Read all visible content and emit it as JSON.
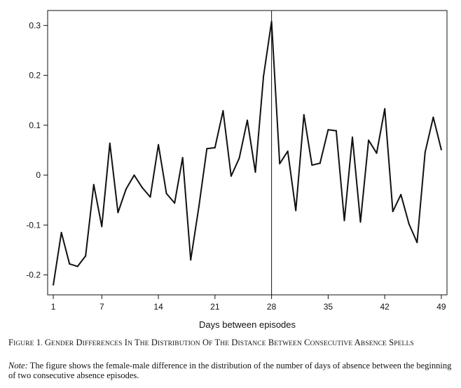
{
  "chart_data": {
    "type": "line",
    "title": "",
    "xlabel": "Days between episodes",
    "ylabel": "",
    "xlim": [
      0.3,
      49.7
    ],
    "ylim": [
      -0.24,
      0.33
    ],
    "x_ticks": [
      1,
      7,
      14,
      21,
      28,
      35,
      42,
      49
    ],
    "y_ticks": [
      -0.2,
      -0.1,
      0,
      0.1,
      0.2,
      0.3
    ],
    "y_tick_labels": [
      "-0.2",
      "-0.1",
      "0",
      "0.1",
      "0.2",
      "0.3"
    ],
    "vertical_line_x": 28,
    "grid": false,
    "series": [
      {
        "x": [
          1,
          2,
          3,
          4,
          5,
          6,
          7,
          8,
          9,
          10,
          11,
          12,
          13,
          14,
          15,
          16,
          17,
          18,
          19,
          20,
          21,
          22,
          23,
          24,
          25,
          26,
          27,
          28,
          29,
          30,
          31,
          32,
          33,
          34,
          35,
          36,
          37,
          38,
          39,
          40,
          41,
          42,
          43,
          44,
          45,
          46,
          47,
          48,
          49
        ],
        "values": [
          -0.22,
          -0.115,
          -0.178,
          -0.183,
          -0.162,
          -0.019,
          -0.103,
          0.064,
          -0.075,
          -0.028,
          0.0,
          -0.025,
          -0.044,
          0.061,
          -0.037,
          -0.056,
          0.035,
          -0.17,
          -0.064,
          0.053,
          0.055,
          0.129,
          -0.002,
          0.034,
          0.11,
          0.006,
          0.198,
          0.308,
          0.023,
          0.048,
          -0.071,
          0.121,
          0.02,
          0.024,
          0.091,
          0.089,
          -0.091,
          0.076,
          -0.094,
          0.07,
          0.044,
          0.133,
          -0.073,
          -0.039,
          -0.098,
          -0.135,
          0.046,
          0.116,
          0.051
        ]
      }
    ]
  },
  "caption": "Figure 1. Gender Differences in the Distribution of the Distance between Consecutive Absence Spells",
  "note": {
    "label": "Note:",
    "text": " The figure shows the female-male difference in the distribution of the number of days of absence between the beginning of two consecutive absence episodes."
  }
}
